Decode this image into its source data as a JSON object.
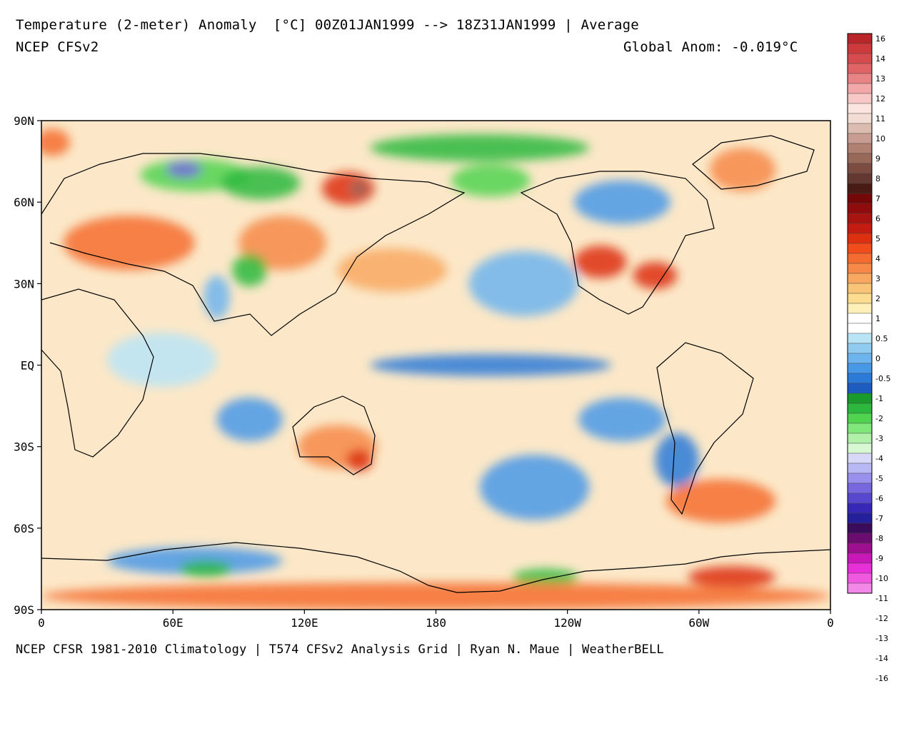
{
  "header": {
    "title": "Temperature (2-meter) Anomaly  [°C] 00Z01JAN1999 --> 18Z31JAN1999 | Average",
    "model": "NCEP CFSv2",
    "global_anomaly": "Global Anom: -0.019°C"
  },
  "footer": {
    "credits": "NCEP CFSR 1981-2010 Climatology | T574 CFSv2 Analysis Grid | Ryan N. Maue | WeatherBELL"
  },
  "axes": {
    "lon_ticks": [
      {
        "lon": 0,
        "label": "0"
      },
      {
        "lon": 60,
        "label": "60E"
      },
      {
        "lon": 120,
        "label": "120E"
      },
      {
        "lon": 180,
        "label": "180"
      },
      {
        "lon": 240,
        "label": "120W"
      },
      {
        "lon": 300,
        "label": "60W"
      },
      {
        "lon": 360,
        "label": "0"
      }
    ],
    "lat_ticks": [
      {
        "lat": 90,
        "label": "90N"
      },
      {
        "lat": 60,
        "label": "60N"
      },
      {
        "lat": 30,
        "label": "30N"
      },
      {
        "lat": 0,
        "label": "EQ"
      },
      {
        "lat": -30,
        "label": "30S"
      },
      {
        "lat": -60,
        "label": "60S"
      },
      {
        "lat": -90,
        "label": "90S"
      }
    ]
  },
  "colorbar": {
    "swatches": [
      "#b8262a",
      "#cc3a3c",
      "#d64c4e",
      "#e06466",
      "#e98486",
      "#f2a8a8",
      "#f8c8c6",
      "#fce4e0",
      "#f2dcd4",
      "#dcbcb0",
      "#c89c90",
      "#b08070",
      "#986858",
      "#7c4c40",
      "#623830",
      "#4a1a14",
      "#740808",
      "#900c0c",
      "#a81410",
      "#c41c10",
      "#dc3010",
      "#f04c1c",
      "#f46c30",
      "#f68848",
      "#f8a860",
      "#fac478",
      "#fcdc90",
      "#fef0b8",
      "#ffffff",
      "#ffffff",
      "#b8e4f6",
      "#90ccf2",
      "#6cb4ee",
      "#4898e8",
      "#2c7ad8",
      "#1c5cc0",
      "#1a9a2a",
      "#2cb83c",
      "#50d450",
      "#80e87a",
      "#b0f0a8",
      "#d8f8d4",
      "#d8d8f8",
      "#b8b8f4",
      "#9890ec",
      "#7868e0",
      "#5848d0",
      "#3828b8",
      "#24209c",
      "#3c0c5c",
      "#6c0c70",
      "#9c1090",
      "#c818b8",
      "#e830d8",
      "#f058e0",
      "#f488e8"
    ],
    "labels": [
      {
        "after": 0,
        "text": "16"
      },
      {
        "after": 2,
        "text": "14"
      },
      {
        "after": 4,
        "text": "13"
      },
      {
        "after": 6,
        "text": "12"
      },
      {
        "after": 8,
        "text": "11"
      },
      {
        "after": 10,
        "text": "10"
      },
      {
        "after": 12,
        "text": "9"
      },
      {
        "after": 14,
        "text": "8"
      },
      {
        "after": 16,
        "text": "7"
      },
      {
        "after": 18,
        "text": "6"
      },
      {
        "after": 20,
        "text": "5"
      },
      {
        "after": 22,
        "text": "4"
      },
      {
        "after": 24,
        "text": "3"
      },
      {
        "after": 26,
        "text": "2"
      },
      {
        "after": 28,
        "text": "1"
      },
      {
        "after": 30,
        "text": "0.5"
      },
      {
        "after": 32,
        "text": "0"
      },
      {
        "after": 34,
        "text": "-0.5"
      },
      {
        "after": 36,
        "text": "-1"
      },
      {
        "after": 38,
        "text": "-2"
      },
      {
        "after": 40,
        "text": "-3"
      },
      {
        "after": 42,
        "text": "-4"
      },
      {
        "after": 44,
        "text": "-5"
      },
      {
        "after": 46,
        "text": "-6"
      },
      {
        "after": 48,
        "text": "-7"
      },
      {
        "after": 50,
        "text": "-8"
      },
      {
        "after": 52,
        "text": "-9"
      },
      {
        "after": 54,
        "text": "-10"
      },
      {
        "after": 56,
        "text": "-11"
      },
      {
        "after": 58,
        "text": "-12"
      },
      {
        "after": 60,
        "text": "-13"
      },
      {
        "after": 62,
        "text": "-14"
      },
      {
        "after": 64,
        "text": "-16"
      }
    ]
  },
  "anomaly_regions": [
    {
      "lon": 5,
      "lat": 82,
      "rx": 8,
      "ry": 5,
      "color": "#f46c30"
    },
    {
      "lon": 70,
      "lat": 70,
      "rx": 25,
      "ry": 6,
      "color": "#50d450"
    },
    {
      "lon": 65,
      "lat": 72,
      "rx": 8,
      "ry": 3,
      "color": "#7868e0"
    },
    {
      "lon": 100,
      "lat": 67,
      "rx": 18,
      "ry": 6,
      "color": "#2cb83c"
    },
    {
      "lon": 140,
      "lat": 65,
      "rx": 12,
      "ry": 6,
      "color": "#dc3010"
    },
    {
      "lon": 145,
      "lat": 65,
      "rx": 4,
      "ry": 3,
      "color": "#986858"
    },
    {
      "lon": 200,
      "lat": 80,
      "rx": 50,
      "ry": 5,
      "color": "#2cb83c"
    },
    {
      "lon": 205,
      "lat": 68,
      "rx": 18,
      "ry": 6,
      "color": "#50d450"
    },
    {
      "lon": 320,
      "lat": 72,
      "rx": 15,
      "ry": 8,
      "color": "#f68848"
    },
    {
      "lon": 265,
      "lat": 60,
      "rx": 22,
      "ry": 8,
      "color": "#4898e8"
    },
    {
      "lon": 40,
      "lat": 45,
      "rx": 30,
      "ry": 10,
      "color": "#f46c30"
    },
    {
      "lon": 110,
      "lat": 45,
      "rx": 20,
      "ry": 10,
      "color": "#f68848"
    },
    {
      "lon": 95,
      "lat": 35,
      "rx": 8,
      "ry": 6,
      "color": "#2cb83c"
    },
    {
      "lon": 80,
      "lat": 25,
      "rx": 6,
      "ry": 8,
      "color": "#6cb4ee"
    },
    {
      "lon": 160,
      "lat": 35,
      "rx": 25,
      "ry": 8,
      "color": "#f8a860"
    },
    {
      "lon": 255,
      "lat": 38,
      "rx": 12,
      "ry": 6,
      "color": "#dc3010"
    },
    {
      "lon": 280,
      "lat": 33,
      "rx": 10,
      "ry": 5,
      "color": "#dc3010"
    },
    {
      "lon": 220,
      "lat": 30,
      "rx": 25,
      "ry": 12,
      "color": "#6cb4ee"
    },
    {
      "lon": 205,
      "lat": 0,
      "rx": 55,
      "ry": 4,
      "color": "#2c7ad8"
    },
    {
      "lon": 55,
      "lat": 2,
      "rx": 25,
      "ry": 10,
      "color": "#b8e4f6"
    },
    {
      "lon": 95,
      "lat": -20,
      "rx": 15,
      "ry": 8,
      "color": "#4898e8"
    },
    {
      "lon": 135,
      "lat": -30,
      "rx": 18,
      "ry": 8,
      "color": "#f68848"
    },
    {
      "lon": 145,
      "lat": -35,
      "rx": 6,
      "ry": 4,
      "color": "#dc3010"
    },
    {
      "lon": 225,
      "lat": -45,
      "rx": 25,
      "ry": 12,
      "color": "#4898e8"
    },
    {
      "lon": 265,
      "lat": -20,
      "rx": 20,
      "ry": 8,
      "color": "#4898e8"
    },
    {
      "lon": 290,
      "lat": -35,
      "rx": 10,
      "ry": 10,
      "color": "#2c7ad8"
    },
    {
      "lon": 310,
      "lat": -50,
      "rx": 25,
      "ry": 8,
      "color": "#f46c30"
    },
    {
      "lon": 70,
      "lat": -72,
      "rx": 40,
      "ry": 5,
      "color": "#4898e8"
    },
    {
      "lon": 75,
      "lat": -75,
      "rx": 12,
      "ry": 3,
      "color": "#2cb83c"
    },
    {
      "lon": 230,
      "lat": -78,
      "rx": 15,
      "ry": 3,
      "color": "#2cb83c"
    },
    {
      "lon": 315,
      "lat": -78,
      "rx": 20,
      "ry": 4,
      "color": "#dc3010"
    },
    {
      "lon": 180,
      "lat": -85,
      "rx": 180,
      "ry": 5,
      "color": "#f46c30"
    }
  ]
}
